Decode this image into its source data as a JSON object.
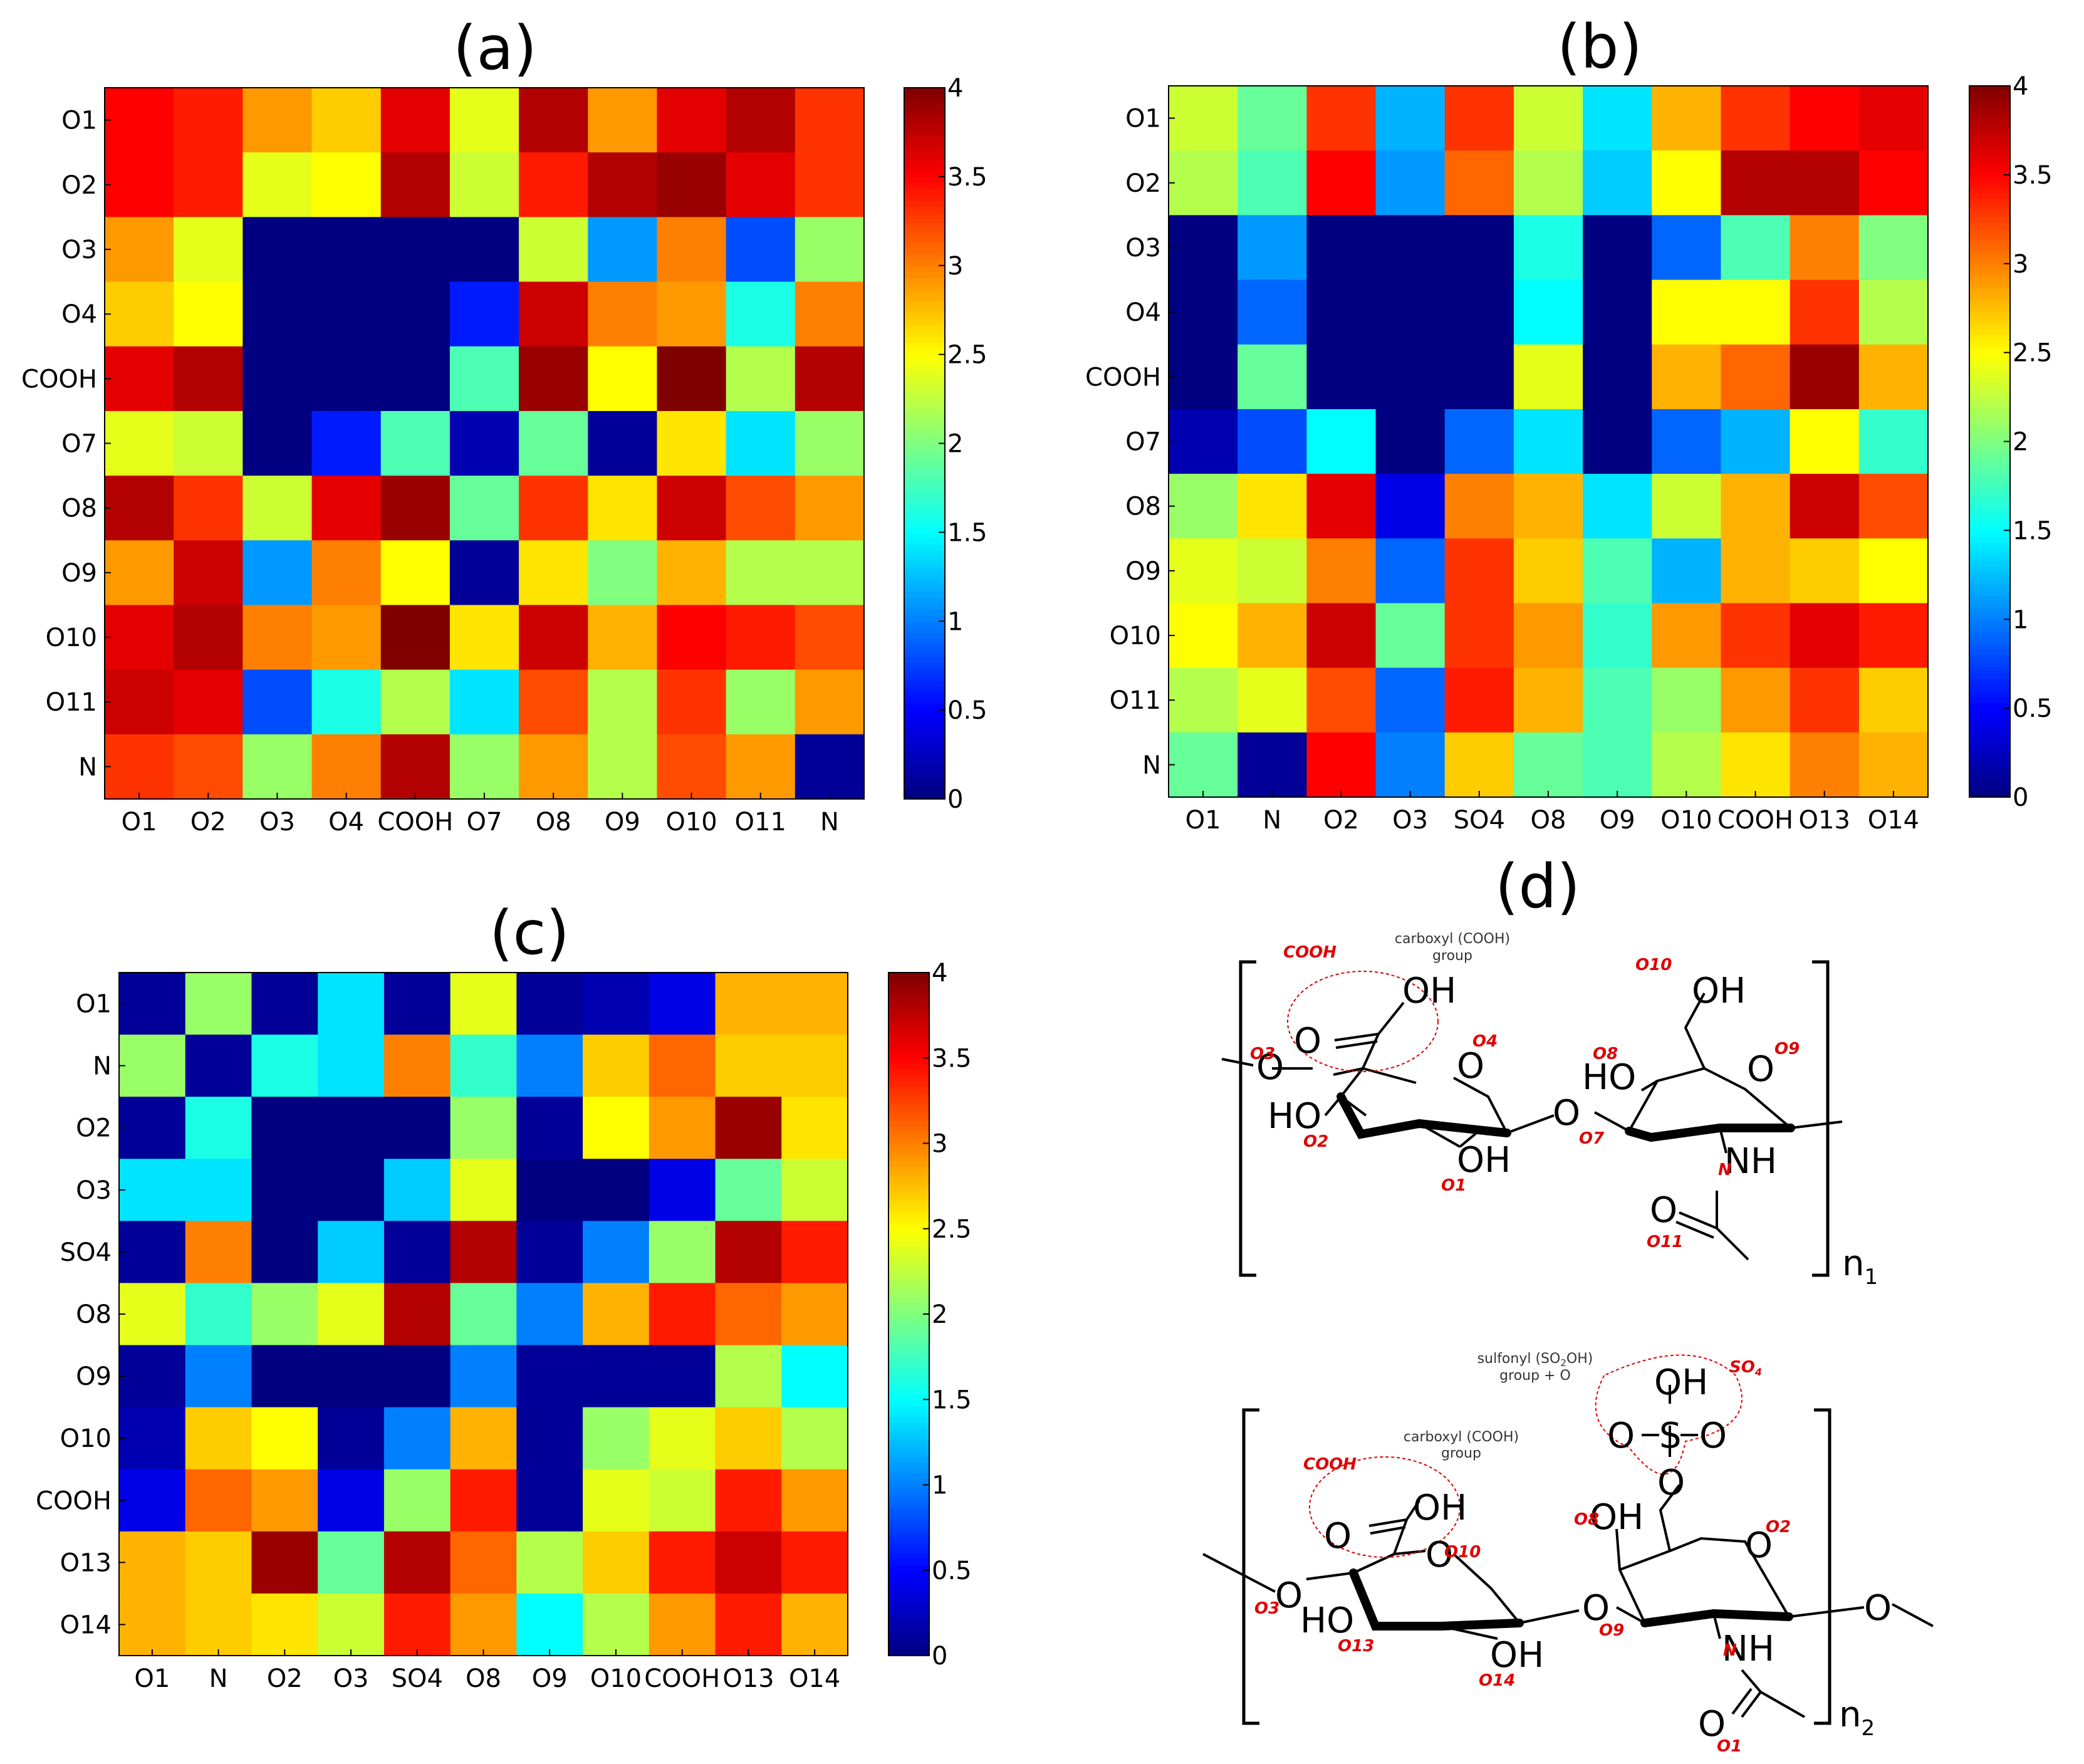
{
  "chart_data": [
    {
      "type": "heatmap",
      "title": "(a)",
      "rows": [
        "O1",
        "O2",
        "O3",
        "O4",
        "COOH",
        "O7",
        "O8",
        "O9",
        "O10",
        "O11",
        "N"
      ],
      "cols": [
        "O1",
        "O2",
        "O3",
        "O4",
        "COOH",
        "O7",
        "O8",
        "O9",
        "O10",
        "O11",
        "N"
      ],
      "values": [
        [
          3.5,
          3.4,
          2.9,
          2.7,
          3.6,
          2.4,
          3.8,
          2.9,
          3.6,
          3.8,
          3.3
        ],
        [
          3.5,
          3.4,
          2.4,
          2.5,
          3.8,
          2.3,
          3.4,
          3.8,
          3.9,
          3.6,
          3.3
        ],
        [
          2.9,
          2.4,
          0,
          0,
          0,
          0,
          2.3,
          1.1,
          3.0,
          0.8,
          2.1
        ],
        [
          2.7,
          2.5,
          0,
          0,
          0,
          0.6,
          3.7,
          3.0,
          2.9,
          1.6,
          3.0
        ],
        [
          3.6,
          3.8,
          0,
          0,
          0,
          1.8,
          3.9,
          2.5,
          4.0,
          2.2,
          3.8
        ],
        [
          2.4,
          2.3,
          0,
          0.6,
          1.8,
          0.2,
          1.9,
          0.1,
          2.6,
          1.4,
          2.1
        ],
        [
          3.8,
          3.3,
          2.3,
          3.6,
          3.9,
          1.9,
          3.3,
          2.6,
          3.7,
          3.2,
          2.9
        ],
        [
          2.9,
          3.7,
          1.1,
          3.0,
          2.5,
          0.1,
          2.6,
          2.0,
          2.8,
          2.2,
          2.2
        ],
        [
          3.6,
          3.8,
          3.0,
          2.9,
          4.0,
          2.6,
          3.7,
          2.8,
          3.5,
          3.4,
          3.2
        ],
        [
          3.7,
          3.6,
          0.8,
          1.6,
          2.2,
          1.4,
          3.2,
          2.2,
          3.3,
          2.1,
          2.9
        ],
        [
          3.3,
          3.2,
          2.1,
          3.0,
          3.8,
          2.1,
          2.9,
          2.2,
          3.2,
          2.9,
          0.1
        ]
      ],
      "clim": [
        0,
        4
      ],
      "colorbar_ticks": [
        "0",
        "0.5",
        "1",
        "1.5",
        "2",
        "2.5",
        "3",
        "3.5",
        "4"
      ]
    },
    {
      "type": "heatmap",
      "title": "(b)",
      "rows": [
        "O1",
        "O2",
        "O3",
        "O4",
        "COOH",
        "O7",
        "O8",
        "O9",
        "O10",
        "O11",
        "N"
      ],
      "cols": [
        "O1",
        "N",
        "O2",
        "O3",
        "SO4",
        "O8",
        "O9",
        "O10",
        "COOH",
        "O13",
        "O14"
      ],
      "values": [
        [
          2.3,
          1.9,
          3.3,
          1.2,
          3.3,
          2.3,
          1.4,
          2.8,
          3.3,
          3.5,
          3.6
        ],
        [
          2.2,
          1.8,
          3.5,
          1.1,
          3.1,
          2.2,
          1.3,
          2.5,
          3.8,
          3.8,
          3.5
        ],
        [
          0,
          1.1,
          0,
          0,
          0,
          1.6,
          0,
          0.9,
          1.8,
          3.0,
          2.0
        ],
        [
          0,
          0.9,
          0,
          0,
          0,
          1.5,
          0,
          2.5,
          2.5,
          3.3,
          2.2
        ],
        [
          0,
          1.9,
          0,
          0,
          0,
          2.4,
          0,
          2.8,
          3.1,
          3.9,
          2.8
        ],
        [
          0.2,
          0.8,
          1.5,
          0,
          0.9,
          1.4,
          0,
          0.9,
          1.2,
          2.5,
          1.7
        ],
        [
          2.1,
          2.6,
          3.6,
          0.4,
          3.0,
          2.8,
          1.4,
          2.3,
          2.8,
          3.7,
          3.2
        ],
        [
          2.4,
          2.3,
          3.0,
          0.9,
          3.3,
          2.7,
          1.8,
          1.2,
          2.8,
          2.7,
          2.5
        ],
        [
          2.5,
          2.8,
          3.7,
          1.9,
          3.3,
          2.9,
          1.7,
          2.9,
          3.3,
          3.6,
          3.4
        ],
        [
          2.2,
          2.4,
          3.2,
          0.9,
          3.4,
          2.8,
          1.8,
          2.1,
          2.9,
          3.3,
          2.7
        ],
        [
          1.9,
          0.1,
          3.5,
          1.0,
          2.7,
          1.9,
          1.8,
          2.2,
          2.6,
          3.0,
          2.8
        ]
      ],
      "clim": [
        0,
        4
      ],
      "colorbar_ticks": [
        "0",
        "0.5",
        "1",
        "1.5",
        "2",
        "2.5",
        "3",
        "3.5",
        "4"
      ]
    },
    {
      "type": "heatmap",
      "title": "(c)",
      "rows": [
        "O1",
        "N",
        "O2",
        "O3",
        "SO4",
        "O8",
        "O9",
        "O10",
        "COOH",
        "O13",
        "O14"
      ],
      "cols": [
        "O1",
        "N",
        "O2",
        "O3",
        "SO4",
        "O8",
        "O9",
        "O10",
        "COOH",
        "O13",
        "O14"
      ],
      "values": [
        [
          0.1,
          2.1,
          0.1,
          1.4,
          0.1,
          2.4,
          0.1,
          0.2,
          0.4,
          2.8,
          2.8
        ],
        [
          2.1,
          0.1,
          1.6,
          1.4,
          3.0,
          1.7,
          1.0,
          2.7,
          3.1,
          2.7,
          2.7
        ],
        [
          0.1,
          1.6,
          0,
          0,
          0,
          2.1,
          0.1,
          2.5,
          2.9,
          3.9,
          2.6
        ],
        [
          1.4,
          1.4,
          0,
          0,
          1.3,
          2.4,
          0,
          0,
          0.4,
          1.9,
          2.3
        ],
        [
          0.1,
          3.0,
          0,
          1.3,
          0.1,
          3.8,
          0.1,
          1.0,
          2.1,
          3.8,
          3.4
        ],
        [
          2.4,
          1.7,
          2.1,
          2.4,
          3.8,
          1.9,
          1.0,
          2.8,
          3.4,
          3.1,
          2.9
        ],
        [
          0.1,
          1.0,
          0,
          0,
          0,
          1.0,
          0.1,
          0.1,
          0.1,
          2.2,
          1.5
        ],
        [
          0.2,
          2.7,
          2.5,
          0.1,
          1.0,
          2.8,
          0.1,
          2.1,
          2.4,
          2.7,
          2.2
        ],
        [
          0.4,
          3.1,
          2.9,
          0.4,
          2.1,
          3.4,
          0.1,
          2.4,
          2.3,
          3.4,
          2.9
        ],
        [
          2.8,
          2.7,
          3.9,
          1.9,
          3.8,
          3.1,
          2.2,
          2.7,
          3.4,
          3.7,
          3.4
        ],
        [
          2.8,
          2.7,
          2.6,
          2.3,
          3.4,
          2.9,
          1.5,
          2.2,
          2.9,
          3.4,
          2.8
        ]
      ],
      "clim": [
        0,
        4
      ],
      "colorbar_ticks": [
        "0",
        "0.5",
        "1",
        "1.5",
        "2",
        "2.5",
        "3",
        "3.5",
        "4"
      ]
    }
  ],
  "panel_d": {
    "title": "(d)",
    "top": {
      "group_note_line1": "carboxyl (COOH)",
      "group_note_line2": "group",
      "oh_cooh": "OH",
      "o_carbonyl": "O",
      "ring1_o": "O",
      "ring2_o": "O",
      "link_o_left": "O",
      "link_o_mid": "O",
      "ho_left": "HO",
      "oh_bottom": "OH",
      "ho_ring2": "HO",
      "oh_ring2": "OH",
      "nh": "NH",
      "o_amide": "O",
      "repeat": "n",
      "repeat_sub": "1",
      "labels": {
        "cooh": "COOH",
        "o3": "O3",
        "o4": "O4",
        "o2": "O2",
        "o1": "O1",
        "o7": "O7",
        "o8": "O8",
        "o9": "O9",
        "o10": "O10",
        "n": "N",
        "o11": "O11"
      }
    },
    "bottom": {
      "group_note_line1": "carboxyl (COOH)",
      "group_note_line2": "group",
      "sulfonyl_note_line1": "sulfonyl (SO",
      "sulfonyl_note_sub": "2",
      "sulfonyl_note_line1b": "OH)",
      "sulfonyl_note_line2": "group + O",
      "oh_cooh": "OH",
      "o_carbonyl": "O",
      "ring1_o": "O",
      "ring2_o": "O",
      "link_o_left": "O",
      "link_o_mid": "O",
      "link_o_right": "O",
      "ho_left": "HO",
      "oh_bottom": "OH",
      "oh_ring2": "OH",
      "so_oh": "OH",
      "so_s": "S",
      "so_o_left": "O",
      "so_o_right": "O",
      "so_o_bottom": "O",
      "nh": "NH",
      "o_amide": "O",
      "repeat": "n",
      "repeat_sub": "2",
      "labels": {
        "cooh": "COOH",
        "so4": "SO",
        "so4_sub": "4",
        "o3": "O3",
        "o10": "O10",
        "o13": "O13",
        "o14": "O14",
        "o8": "O8",
        "o9": "O9",
        "o2": "O2",
        "n": "N",
        "o1": "O1"
      }
    }
  }
}
